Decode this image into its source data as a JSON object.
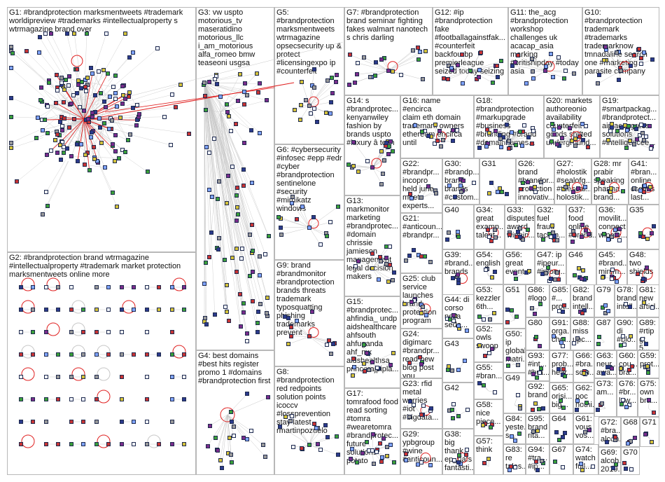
{
  "colors": {
    "panel_border": "#b8b8b8",
    "edge": "#c7c7c7",
    "highlight_edge": "#e02020",
    "node_border": "#1f2a4d",
    "node_palette": [
      "#f0f4ff",
      "#2b3a8c",
      "#7fa4ff",
      "#3aa03a",
      "#d4c23a",
      "#c83434",
      "#7a2c8c",
      "#999999"
    ]
  },
  "panels": [
    {
      "id": "G1",
      "text": "G1: #brandprotection marksmentweets #trademark\nworldipreview #trademarks #intellectualproperty s\nwtrmagazine brand over"
    },
    {
      "id": "G2",
      "text": "G2: #brandprotection brand wtrmagazine\n#intellectualproperty #trademark market protection\nmarksmentweets online more"
    },
    {
      "id": "G3",
      "text": "G3: vw uspto\nmotorious_tv\nmaseratidino\nmotorious_llc\ni_am_motorious\nalfa_romeo bmw\nteaseoni usgsa"
    },
    {
      "id": "G4",
      "text": "G4: best domains\n#best hits register\npromo 1 #domains\n#brandprotection first"
    },
    {
      "id": "G5",
      "text": "G5:\n#brandprotection\nmarksmentweets\nwtrmagazine\nopsecsecurity up &\nprotect\n#licensingexpo ip\n#counterfeit"
    },
    {
      "id": "G6",
      "text": "G6: #cybersecurity\n#infosec #epp #edr\n#cyber\n#brandprotection\nsentinelone\n#security\n#mimikatz\nwindows"
    },
    {
      "id": "G7",
      "text": "G7: #brandprotection\nbrand seminar fighting\nfakes walmart nanotech\ns chris darling"
    },
    {
      "id": "G8",
      "text": "G8:\n#brandprotection\nred redpoints\nsolution points\nicoccv\n#lossprevention\nstay latest\nrmartinpozuelo"
    },
    {
      "id": "G9",
      "text": "G9: brand\n#brandmonitor\n#brandprotection\nbrands threats\ntrademark\ntyposquatting\nphishing\ntrademarks\nprevent"
    },
    {
      "id": "G10",
      "text": "G10:\n#brandprotection\ntrademark\n#trademarks\ntrademarknow\ntmnadaline search\none #marketing\nparasite company"
    },
    {
      "id": "G11",
      "text": "G11: the_acg\n#brandprotection\nworkshop\nchallenges uk\nacacap_asia\nmarking\n#britishipday #today\nasia"
    },
    {
      "id": "G12",
      "text": "G12: #ip\n#brandprotection\nfake\n#footballagainstfak...\n#counterfeit\nbackfourbp\npremierleague\nseized today seizing"
    },
    {
      "id": "G13",
      "text": "G13:\nmarkmonitor\nmarketing\n#brandprotec...\n#domain\nchrissie\njamieson\nmanagement\nlegal decision\nmakers"
    },
    {
      "id": "G14",
      "text": "G14: s\n#brandprotec...\nkenyanwiley\nfashion by\nbrands uspto\n#luxury â tech"
    },
    {
      "id": "G15",
      "text": "G15:\n#brandprotec...\nahfindia_ undp\naidshealthcare\nahfsouth\nahfuganda\nahf_mx\naidshealthsa\nprincerajpipla..."
    },
    {
      "id": "G16",
      "text": "G16: name #encirca\nclaim eth domain\ntrademark owners\nethereum encirca\nuntil"
    },
    {
      "id": "G17",
      "text": "G17:\ntomrafood food\nread sorting\n#tomra\n#wearetomra\n#brandprotec...\nfuture\nsolutions\npotato"
    },
    {
      "id": "G18",
      "text": "G18:\n#brandprotection\n#markupgrade\n#business\n#branding #brand\n#domainnames..."
    },
    {
      "id": "G19",
      "text": "G19:\n#smartpackag...\n#brandprotect...\naipiacongress\nsolutions\n#intelligencee..."
    },
    {
      "id": "G20",
      "text": "G20: markets\nauthoreonio\navailability\ncounterfeit\ngoods shifted\nunderground..."
    },
    {
      "id": "G21",
      "text": "G21:\n#anticoun...\n#brandpr..."
    },
    {
      "id": "G22",
      "text": "G22:\n#brandpr...\nincopro\nheld june\nmeet\nexperts..."
    },
    {
      "id": "G23",
      "text": "G23: rfid\nmetal\nworries\n#iot\n#bigdata..."
    },
    {
      "id": "G24",
      "text": "G24:\ndigimarc\n#brandpr...\nread new\nblog post\nyou"
    },
    {
      "id": "G25",
      "text": "G25: club\nservice\nlaunches\nbrand\nprotection\nprogram"
    },
    {
      "id": "G26",
      "text": "G26:\nbrand\n#brandpr...\nprotection\ninnovativ..."
    },
    {
      "id": "G27",
      "text": "G27:\n#holostik\n#sealofg...\n#theseal...\nholostik..."
    },
    {
      "id": "G28",
      "text": "G28: mr\nprabir\nspeaking\npharma\nbrand..."
    },
    {
      "id": "G29",
      "text": "G29:\nypbgroup\n#wine\n#anticoun..."
    },
    {
      "id": "G30",
      "text": "G30:\n#brandp...\nbrand\nbrands\n#custom..."
    },
    {
      "id": "G31",
      "text": "G31"
    },
    {
      "id": "G32",
      "text": "G32:\nfuel\nfraud\ntacklin..."
    },
    {
      "id": "G33",
      "text": "G33:\ndisputes\naward\nwinnin..."
    },
    {
      "id": "G34",
      "text": "G34:\ngreat\nexamp...\ntalent..."
    },
    {
      "id": "G35",
      "text": "G35"
    },
    {
      "id": "G36",
      "text": "G36:\nmovilit...\nconnect\nwipote..."
    },
    {
      "id": "G37",
      "text": "G37:\nfood\nonline\n#brand..."
    },
    {
      "id": "G38",
      "text": "G38: big\nthank\nep_nafs\nfantasti..."
    },
    {
      "id": "G39",
      "text": "G39:\n#brand...\nbrands"
    },
    {
      "id": "G40",
      "text": "G40"
    },
    {
      "id": "G41",
      "text": "G41:\n#bran...\nonline\ncscdbs\nlast..."
    },
    {
      "id": "G42",
      "text": "G42"
    },
    {
      "id": "G43",
      "text": "G43"
    },
    {
      "id": "G44",
      "text": "G44: di\ncorso\nnella\nsede..."
    },
    {
      "id": "G45",
      "text": "G45:\n#brand...\nminim..."
    },
    {
      "id": "G46",
      "text": "G46"
    },
    {
      "id": "G47",
      "text": "G47: ip\n#ipeur...\n#ipforu..."
    },
    {
      "id": "G48",
      "text": "G48:\ntwo\nshields"
    },
    {
      "id": "G49",
      "text": "G49"
    },
    {
      "id": "G50",
      "text": "G50:\nip\nglobal\nmatri..."
    },
    {
      "id": "G51",
      "text": "G51"
    },
    {
      "id": "G52",
      "text": "G52:\nowls\nswoop"
    },
    {
      "id": "G53",
      "text": "G53:\nkezzler\n6th..."
    },
    {
      "id": "G54",
      "text": "G54:\nenglish"
    },
    {
      "id": "G55",
      "text": "G55:\n#bran..."
    },
    {
      "id": "G56",
      "text": "G56:\ngreat\nevent..."
    },
    {
      "id": "G57",
      "text": "G57:\nthink"
    },
    {
      "id": "G58",
      "text": "G58:\nnice\npiece..."
    },
    {
      "id": "G59",
      "text": "G59:\nprot..."
    },
    {
      "id": "G60",
      "text": "G60:\ncou...\nbra..."
    },
    {
      "id": "G61",
      "text": "G61:\nvous\nvos..."
    },
    {
      "id": "G62",
      "text": "G62:\npoc\nnothi..."
    },
    {
      "id": "G63",
      "text": "G63:\nneur...\nawa..."
    },
    {
      "id": "G64",
      "text": "G64"
    },
    {
      "id": "G65",
      "text": "G65:\norisi...\nbig..."
    },
    {
      "id": "G66",
      "text": "G66:\n#bra...\nsolu..."
    },
    {
      "id": "G67",
      "text": "G67"
    },
    {
      "id": "G68",
      "text": "G68"
    },
    {
      "id": "G69",
      "text": "G69:\nalcoh...\n2019..."
    },
    {
      "id": "G70",
      "text": "G70"
    },
    {
      "id": "G71",
      "text": "G71"
    },
    {
      "id": "G72",
      "text": "G72:\n#bra...\nalcoh..."
    },
    {
      "id": "G73",
      "text": "G73:\nam..."
    },
    {
      "id": "G74",
      "text": "G74:\nwatch\nfull..."
    },
    {
      "id": "G75",
      "text": "G75:\nown\nbra..."
    },
    {
      "id": "G76",
      "text": "G76:\n#br...\nlaw..."
    },
    {
      "id": "G77",
      "text": "G77:\nprob...\nhear..."
    },
    {
      "id": "G78",
      "text": "G78:\nbrand\nintell..."
    },
    {
      "id": "G79",
      "text": "G79"
    },
    {
      "id": "G80",
      "text": "G80"
    },
    {
      "id": "G81",
      "text": "G81:\nnew\narticl..."
    },
    {
      "id": "G82",
      "text": "G82:\nbrand\nintell..."
    },
    {
      "id": "G83",
      "text": "G83:\nre\ntales..."
    },
    {
      "id": "G84",
      "text": "G84:\nyeste...\ns..."
    },
    {
      "id": "G85",
      "text": "G85:\n#...\nprot..."
    },
    {
      "id": "G86",
      "text": "G86:\n#logo"
    },
    {
      "id": "G87",
      "text": "G87"
    },
    {
      "id": "G88",
      "text": "G88:\nmiss\nupc..."
    },
    {
      "id": "G89",
      "text": "G89:\n#rtip\ngt 5..."
    },
    {
      "id": "G90",
      "text": "G90:\ndi\n#blo..."
    },
    {
      "id": "G91",
      "text": "G91:\norga...\ncho..."
    },
    {
      "id": "G92",
      "text": "G92:\nbrand"
    },
    {
      "id": "G93",
      "text": "G93:\n#int...\n#bra..."
    },
    {
      "id": "G94",
      "text": "G94:\n#tra...\n#ip..."
    },
    {
      "id": "G95",
      "text": "G95:\nbrand\nrita..."
    }
  ]
}
